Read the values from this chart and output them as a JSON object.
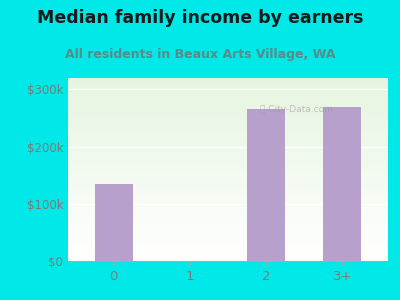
{
  "title": "Median family income by earners",
  "subtitle": "All residents in Beaux Arts Village, WA",
  "categories": [
    "0",
    "1",
    "2",
    "3+"
  ],
  "values": [
    135000,
    0,
    265000,
    270000
  ],
  "bar_color": "#b8a0cc",
  "ylim": [
    0,
    320000
  ],
  "yticks": [
    0,
    100000,
    200000,
    300000
  ],
  "ytick_labels": [
    "$0",
    "$100k",
    "$200k",
    "$300k"
  ],
  "outer_bg": "#00e8e8",
  "plot_bg_top": "#e6f5e0",
  "plot_bg_bottom": "#ffffff",
  "title_color": "#1a1a1a",
  "subtitle_color": "#5a8a8a",
  "tick_color": "#7a7a7a",
  "title_fontsize": 12.5,
  "subtitle_fontsize": 9
}
